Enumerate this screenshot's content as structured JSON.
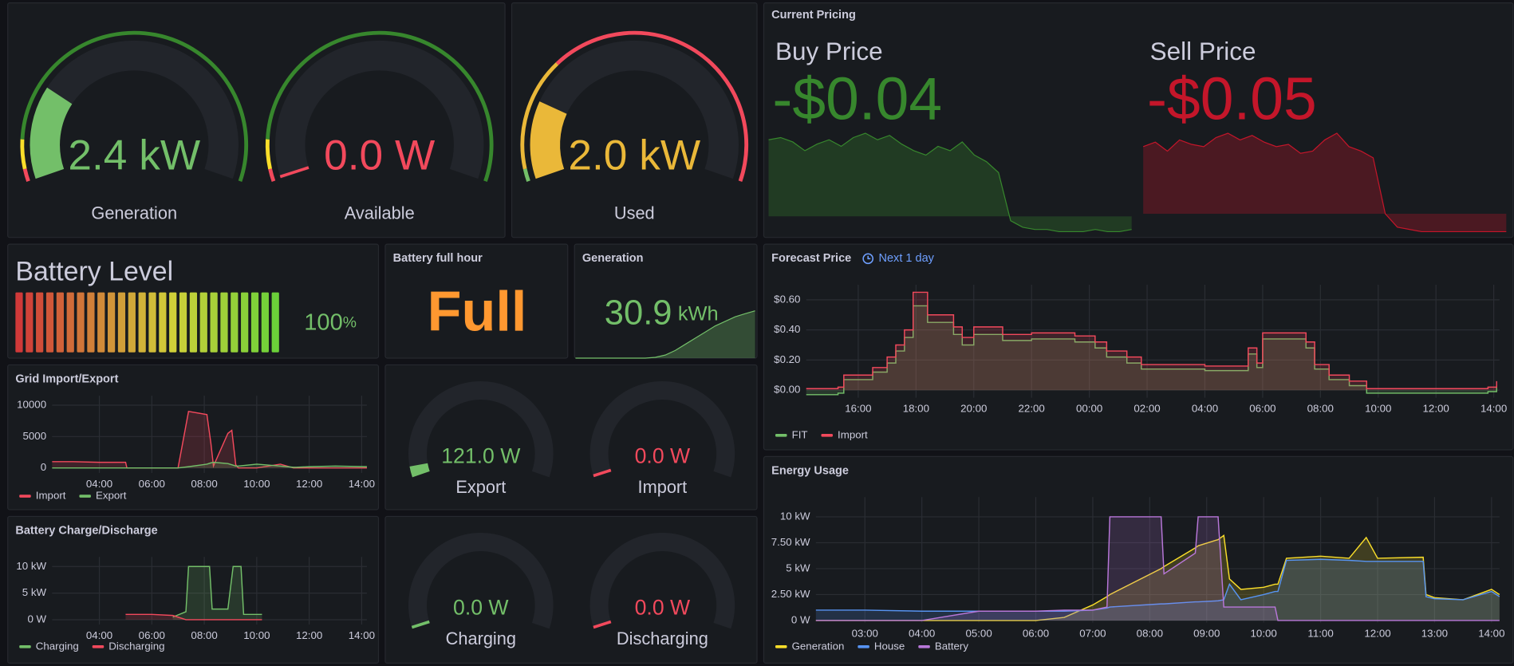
{
  "gauges": [
    {
      "label": "Generation",
      "value": 2.4,
      "value_label": "2.4 kW",
      "max": 10,
      "color": "#73bf69",
      "thresholds": [
        {
          "value": 0,
          "color": "#f2495c"
        },
        {
          "value": 0.3,
          "color": "#fade2a"
        },
        {
          "value": 1,
          "color": "#37872d"
        }
      ]
    },
    {
      "label": "Available",
      "value": 0,
      "value_label": "0.0 W",
      "max": 10,
      "color": "#f2495c",
      "thresholds": [
        {
          "value": 0,
          "color": "#f2495c"
        },
        {
          "value": 0.3,
          "color": "#fade2a"
        },
        {
          "value": 1,
          "color": "#37872d"
        }
      ]
    },
    {
      "label": "Used",
      "value": 2.0,
      "value_label": "2.0 kW",
      "max": 10,
      "color": "#eab839",
      "thresholds": [
        {
          "value": 0,
          "color": "#73bf69"
        },
        {
          "value": 0.3,
          "color": "#eab839"
        },
        {
          "value": 3,
          "color": "#f2495c"
        }
      ]
    }
  ],
  "pricing": {
    "title": "Current Pricing",
    "stats": [
      {
        "label": "Buy Price",
        "value": -0.04,
        "value_label": "-$0.04",
        "color": "#37872d",
        "sparkline": [
          0.35,
          0.36,
          0.34,
          0.3,
          0.33,
          0.35,
          0.32,
          0.36,
          0.38,
          0.35,
          0.37,
          0.33,
          0.3,
          0.28,
          0.32,
          0.3,
          0.34,
          0.28,
          0.25,
          0.2,
          -0.02,
          -0.05,
          -0.06,
          -0.06,
          -0.07,
          -0.07,
          -0.07,
          -0.06,
          -0.07,
          -0.07,
          -0.06
        ]
      },
      {
        "label": "Sell Price",
        "value": -0.05,
        "value_label": "-$0.05",
        "color": "#c4162a",
        "sparkline": [
          0.3,
          0.32,
          0.28,
          0.33,
          0.31,
          0.3,
          0.34,
          0.36,
          0.33,
          0.35,
          0.32,
          0.3,
          0.31,
          0.27,
          0.28,
          0.33,
          0.36,
          0.3,
          0.28,
          0.25,
          0.0,
          -0.06,
          -0.07,
          -0.08,
          -0.08,
          -0.08,
          -0.08,
          -0.08,
          -0.08,
          -0.08,
          -0.08
        ]
      }
    ]
  },
  "battery_level": {
    "title": "Battery Level",
    "value": 100,
    "unit": "%",
    "max": 100,
    "color": "#73bf69"
  },
  "battery_full_hour": {
    "title": "Battery full hour",
    "value": "Full",
    "color": "#ff9830"
  },
  "generation_total": {
    "title": "Generation",
    "value": 30.9,
    "unit": "kWh",
    "color": "#73bf69",
    "sparkline": [
      0,
      0,
      0,
      0,
      0,
      0,
      0,
      0,
      0.5,
      2,
      5,
      9,
      13,
      17,
      21,
      24,
      27,
      29,
      30.9
    ]
  },
  "small_gauges": [
    {
      "label": "Export",
      "value": 121.0,
      "value_label": "121.0 W",
      "max": 3000,
      "color": "#73bf69"
    },
    {
      "label": "Import",
      "value": 0,
      "value_label": "0.0 W",
      "max": 3000,
      "color": "#f2495c"
    },
    {
      "label": "Charging",
      "value": 0,
      "value_label": "0.0 W",
      "max": 3000,
      "color": "#73bf69"
    },
    {
      "label": "Discharging",
      "value": 0,
      "value_label": "0.0 W",
      "max": 3000,
      "color": "#f2495c"
    }
  ],
  "charts": [
    {
      "type": "line",
      "title": "Forecast Price",
      "subtitle": "Next 1 day",
      "step": true,
      "fill": true,
      "x": [
        14.2,
        15.3,
        15.5,
        16.5,
        17.0,
        17.3,
        17.6,
        17.9,
        18.4,
        18.8,
        19.3,
        19.6,
        20.0,
        20.5,
        21.0,
        22.0,
        23.5,
        24.2,
        24.6,
        25.3,
        25.8,
        28.0,
        29.1,
        29.5,
        29.8,
        30.0,
        31.5,
        31.8,
        32.3,
        33.0,
        33.6,
        36.0,
        37.8,
        38.1
      ],
      "series": [
        {
          "name": "FIT",
          "color": "#73bf69",
          "values": [
            -0.03,
            -0.02,
            0.07,
            0.12,
            0.18,
            0.26,
            0.35,
            0.56,
            0.45,
            0.45,
            0.37,
            0.3,
            0.37,
            0.37,
            0.33,
            0.34,
            0.32,
            0.28,
            0.22,
            0.18,
            0.14,
            0.13,
            0.13,
            0.24,
            0.15,
            0.34,
            0.28,
            0.14,
            0.07,
            0.03,
            -0.02,
            -0.02,
            -0.01,
            0.02
          ]
        },
        {
          "name": "Import",
          "color": "#f2495c",
          "values": [
            0.01,
            0.02,
            0.1,
            0.15,
            0.22,
            0.3,
            0.4,
            0.65,
            0.5,
            0.5,
            0.42,
            0.35,
            0.42,
            0.42,
            0.37,
            0.38,
            0.36,
            0.32,
            0.26,
            0.22,
            0.17,
            0.16,
            0.16,
            0.28,
            0.18,
            0.38,
            0.32,
            0.17,
            0.1,
            0.06,
            0.01,
            0.01,
            0.02,
            0.06
          ]
        }
      ],
      "xlim": [
        14.2,
        38.2
      ],
      "ylim": [
        -0.05,
        0.7
      ],
      "xticks": [
        {
          "value": 16,
          "label": "16:00"
        },
        {
          "value": 18,
          "label": "18:00"
        },
        {
          "value": 20,
          "label": "20:00"
        },
        {
          "value": 22,
          "label": "22:00"
        },
        {
          "value": 24,
          "label": "00:00"
        },
        {
          "value": 26,
          "label": "02:00"
        },
        {
          "value": 28,
          "label": "04:00"
        },
        {
          "value": 30,
          "label": "06:00"
        },
        {
          "value": 32,
          "label": "08:00"
        },
        {
          "value": 34,
          "label": "10:00"
        },
        {
          "value": 36,
          "label": "12:00"
        },
        {
          "value": 38,
          "label": "14:00"
        }
      ],
      "yticks": [
        {
          "value": 0,
          "label": "$0.00"
        },
        {
          "value": 0.2,
          "label": "$0.20"
        },
        {
          "value": 0.4,
          "label": "$0.40"
        },
        {
          "value": 0.6,
          "label": "$0.60"
        }
      ]
    },
    {
      "type": "line",
      "title": "Grid Import/Export",
      "step": false,
      "fill": true,
      "x": [
        2.2,
        3,
        4,
        5,
        5.05,
        6,
        7,
        7.4,
        8.1,
        8.25,
        8.35,
        8.9,
        9.05,
        9.2,
        9.3,
        10,
        10.9,
        11.4,
        11.5,
        12,
        13,
        14.2
      ],
      "series": [
        {
          "name": "Import",
          "color": "#f2495c",
          "values": [
            1000,
            1000,
            900,
            900,
            0,
            0,
            0,
            9000,
            8500,
            4000,
            300,
            5500,
            6000,
            500,
            0,
            0,
            600,
            0,
            0,
            0,
            0,
            0
          ]
        },
        {
          "name": "Export",
          "color": "#73bf69",
          "values": [
            0,
            0,
            0,
            0,
            0,
            0,
            0,
            200,
            600,
            800,
            900,
            700,
            500,
            300,
            300,
            600,
            300,
            100,
            100,
            200,
            300,
            200
          ]
        }
      ],
      "xlim": [
        2.2,
        14.2
      ],
      "ylim": [
        -800,
        11500
      ],
      "xticks": [
        {
          "value": 4,
          "label": "04:00"
        },
        {
          "value": 6,
          "label": "06:00"
        },
        {
          "value": 8,
          "label": "08:00"
        },
        {
          "value": 10,
          "label": "10:00"
        },
        {
          "value": 12,
          "label": "12:00"
        },
        {
          "value": 14,
          "label": "14:00"
        }
      ],
      "yticks": [
        0,
        5000,
        10000
      ]
    },
    {
      "type": "line",
      "title": "Battery Charge/Discharge",
      "step": false,
      "fill": true,
      "x": [
        5,
        6,
        6.8,
        7.3,
        7.4,
        8.2,
        8.3,
        8.9,
        9.1,
        9.4,
        9.5,
        10.2,
        14.2
      ],
      "series": [
        {
          "name": "Charging",
          "color": "#73bf69",
          "values": [
            null,
            null,
            0.5,
            1.5,
            10,
            10,
            2,
            2,
            10,
            10,
            1,
            1,
            null
          ]
        },
        {
          "name": "Discharging",
          "color": "#f2495c",
          "values": [
            1,
            1,
            0.8,
            0,
            0,
            0,
            0,
            0,
            0,
            0,
            0,
            0,
            null
          ]
        }
      ],
      "xlim": [
        2.2,
        14.2
      ],
      "ylim": [
        -0.9,
        11.8
      ],
      "xticks": [
        {
          "value": 4,
          "label": "04:00"
        },
        {
          "value": 6,
          "label": "06:00"
        },
        {
          "value": 8,
          "label": "08:00"
        },
        {
          "value": 10,
          "label": "10:00"
        },
        {
          "value": 12,
          "label": "12:00"
        },
        {
          "value": 14,
          "label": "14:00"
        }
      ],
      "yticks": [
        {
          "value": 0,
          "label": "0 W"
        },
        {
          "value": 5,
          "label": "5 kW"
        },
        {
          "value": 10,
          "label": "10 kW"
        }
      ]
    },
    {
      "type": "line",
      "title": "Energy Usage",
      "step": false,
      "fill": true,
      "x": [
        2.14,
        3,
        4,
        5,
        6,
        6.5,
        7,
        7.25,
        7.3,
        8.2,
        8.25,
        8.8,
        8.85,
        9.2,
        9.3,
        9.4,
        9.6,
        10,
        10.2,
        10.25,
        10.4,
        11,
        11.5,
        11.8,
        12,
        12.8,
        12.85,
        13,
        13.5,
        14,
        14.14
      ],
      "series": [
        {
          "name": "Generation",
          "color": "#fade2a",
          "values": [
            0,
            0,
            0,
            0,
            0,
            0.3,
            1.5,
            2.3,
            2.5,
            5,
            5.2,
            7,
            7.2,
            7.8,
            8.2,
            4,
            3,
            3.2,
            3.5,
            3.5,
            6,
            6.2,
            6.0,
            8,
            6,
            6.1,
            2.5,
            2.2,
            2,
            3,
            2.5
          ]
        },
        {
          "name": "House",
          "color": "#5794f2",
          "values": [
            1,
            1,
            0.9,
            0.9,
            0.9,
            0.9,
            1.0,
            1.2,
            1.3,
            1.6,
            1.6,
            1.8,
            1.8,
            1.9,
            2.0,
            3.5,
            2.0,
            2.5,
            2.8,
            2.8,
            5.8,
            5.9,
            5.8,
            5.7,
            5.7,
            5.7,
            2.3,
            2.1,
            2.0,
            2.8,
            2.3
          ]
        },
        {
          "name": "Battery",
          "color": "#b877d9",
          "values": [
            0,
            0,
            0,
            0.9,
            0.9,
            1,
            1,
            1.3,
            10,
            10,
            4.5,
            6.5,
            10,
            10,
            1.3,
            1.3,
            1.3,
            1.3,
            1.3,
            0,
            0,
            0,
            0,
            0,
            0,
            0,
            0,
            0,
            0,
            0,
            0
          ]
        }
      ],
      "xlim": [
        2.14,
        14.14
      ],
      "ylim": [
        -0.2,
        11.9
      ],
      "xticks": [
        {
          "value": 3,
          "label": "03:00"
        },
        {
          "value": 4,
          "label": "04:00"
        },
        {
          "value": 5,
          "label": "05:00"
        },
        {
          "value": 6,
          "label": "06:00"
        },
        {
          "value": 7,
          "label": "07:00"
        },
        {
          "value": 8,
          "label": "08:00"
        },
        {
          "value": 9,
          "label": "09:00"
        },
        {
          "value": 10,
          "label": "10:00"
        },
        {
          "value": 11,
          "label": "11:00"
        },
        {
          "value": 12,
          "label": "12:00"
        },
        {
          "value": 13,
          "label": "13:00"
        },
        {
          "value": 14,
          "label": "14:00"
        }
      ],
      "yticks": [
        {
          "value": 0,
          "label": "0 W"
        },
        {
          "value": 2.5,
          "label": "2.50 kW"
        },
        {
          "value": 5,
          "label": "5 kW"
        },
        {
          "value": 7.5,
          "label": "7.50 kW"
        },
        {
          "value": 10,
          "label": "10 kW"
        }
      ]
    }
  ]
}
